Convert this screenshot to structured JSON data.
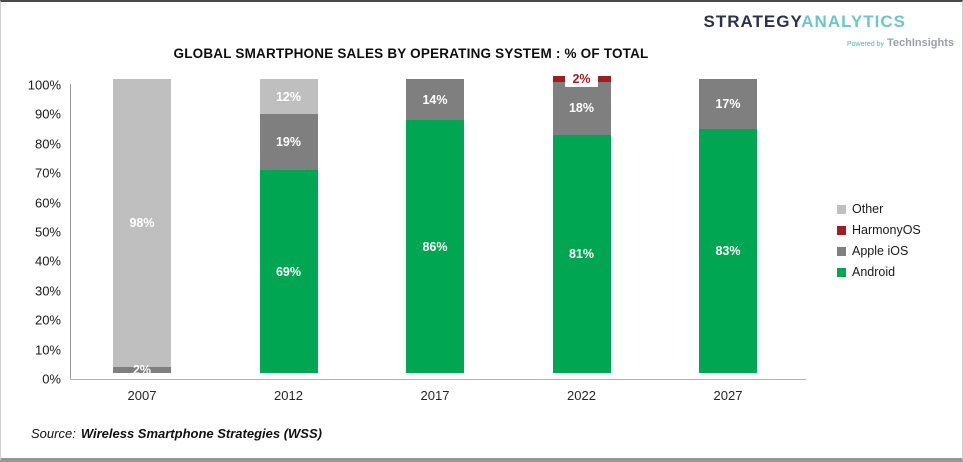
{
  "logo": {
    "brand_primary": "STRATEGY",
    "brand_secondary": "ANALYTICS",
    "powered_by": "Powered by",
    "powered_brand": "TechInsights"
  },
  "source": {
    "prefix": "Source:",
    "name": "Wireless Smartphone Strategies (WSS)"
  },
  "chart_data": {
    "type": "bar",
    "stacked": true,
    "title": "GLOBAL SMARTPHONE SALES BY OPERATING SYSTEM : % OF TOTAL",
    "categories": [
      "2007",
      "2012",
      "2017",
      "2022",
      "2027"
    ],
    "series": [
      {
        "name": "Android",
        "color": "#00a651",
        "values": [
          0,
          69,
          86,
          81,
          83
        ]
      },
      {
        "name": "Apple iOS",
        "color": "#7f7f7f",
        "values": [
          2,
          19,
          14,
          18,
          17
        ]
      },
      {
        "name": "HarmonyOS",
        "color": "#a11d21",
        "values": [
          0,
          0,
          0,
          2,
          0
        ]
      },
      {
        "name": "Other",
        "color": "#bfbfbf",
        "values": [
          98,
          12,
          0,
          0,
          0
        ]
      }
    ],
    "value_suffix": "%",
    "ylim": [
      0,
      100
    ],
    "y_ticks": [
      "100%",
      "90%",
      "80%",
      "70%",
      "60%",
      "50%",
      "40%",
      "30%",
      "20%",
      "10%",
      "0%"
    ],
    "grid": false,
    "legend": {
      "position": "right",
      "entries": [
        "Other",
        "HarmonyOS",
        "Apple iOS",
        "Android"
      ]
    }
  }
}
